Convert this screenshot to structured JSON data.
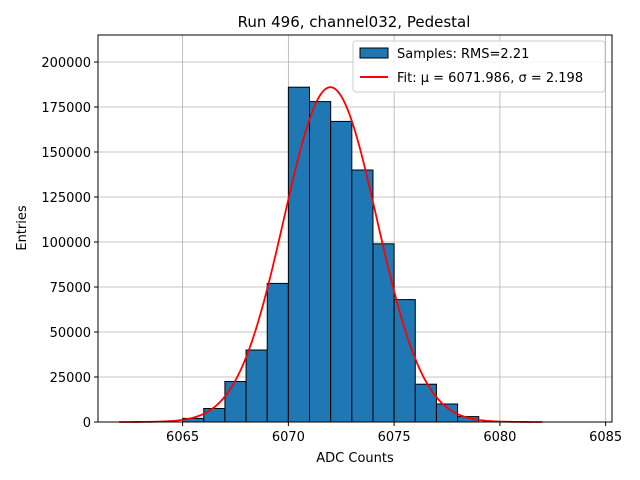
{
  "chart_data": {
    "type": "bar",
    "title": "Run 496, channel032, Pedestal",
    "xlabel": "ADC Counts",
    "ylabel": "Entries",
    "xlim": [
      6061,
      6085.3
    ],
    "ylim": [
      0,
      215000
    ],
    "grid": true,
    "legend_position": "top-right",
    "x_ticks": [
      6065,
      6070,
      6075,
      6080,
      6085
    ],
    "y_ticks": [
      0,
      25000,
      50000,
      75000,
      100000,
      125000,
      150000,
      175000,
      200000
    ],
    "bin_width": 1,
    "bin_edges": [
      6066,
      6067,
      6068,
      6069,
      6070,
      6071,
      6072,
      6073,
      6074,
      6075,
      6076,
      6077,
      6078,
      6079
    ],
    "bins": [
      {
        "left": 6065,
        "value": 2000
      },
      {
        "left": 6066,
        "value": 7500
      },
      {
        "left": 6067,
        "value": 22500
      },
      {
        "left": 6068,
        "value": 40000
      },
      {
        "left": 6069,
        "value": 77000
      },
      {
        "left": 6070,
        "value": 186000
      },
      {
        "left": 6071,
        "value": 178000
      },
      {
        "left": 6072,
        "value": 167000
      },
      {
        "left": 6073,
        "value": 140000
      },
      {
        "left": 6074,
        "value": 99000
      },
      {
        "left": 6075,
        "value": 68000
      },
      {
        "left": 6076,
        "value": 21000
      },
      {
        "left": 6077,
        "value": 10000
      },
      {
        "left": 6078,
        "value": 3000
      }
    ],
    "fit": {
      "mu": 6071.986,
      "sigma": 2.198,
      "amplitude": 186000,
      "x_range": [
        6062,
        6082
      ],
      "color": "#ff0000"
    },
    "bar_color": "#1f77b4",
    "legend": [
      {
        "label": "Samples: RMS=2.21",
        "kind": "bar"
      },
      {
        "label": "Fit: μ = 6071.986, σ = 2.198",
        "kind": "line"
      }
    ]
  }
}
